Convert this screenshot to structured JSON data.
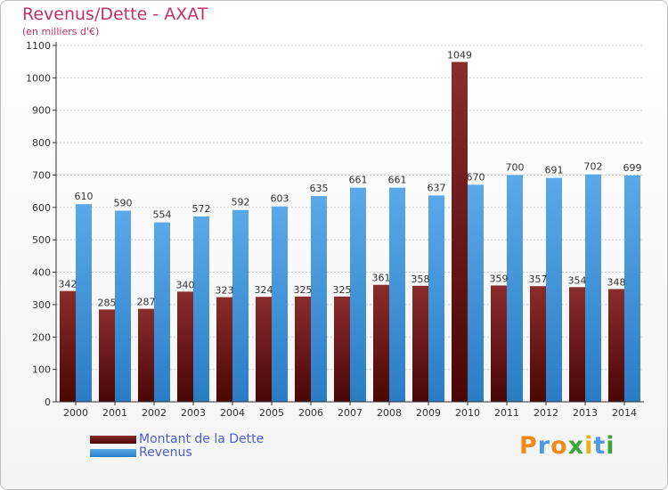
{
  "title": "Revenus/Dette - AXAT",
  "subtitle": "(en milliers d'€)",
  "colors": {
    "debt": "#7a1a1a",
    "revenue": "#4d9fe3",
    "title": "#c0306c",
    "legend_text": "#4a5fd0",
    "grid": "#cfcfcf"
  },
  "chart_data": {
    "type": "bar",
    "categories": [
      "2000",
      "2001",
      "2002",
      "2003",
      "2004",
      "2005",
      "2006",
      "2007",
      "2008",
      "2009",
      "2010",
      "2011",
      "2012",
      "2013",
      "2014"
    ],
    "series": [
      {
        "name": "Montant de la Dette",
        "values": [
          342,
          285,
          287,
          340,
          323,
          324,
          325,
          325,
          361,
          358,
          1049,
          359,
          357,
          354,
          348
        ]
      },
      {
        "name": "Revenus",
        "values": [
          610,
          590,
          554,
          572,
          592,
          603,
          635,
          661,
          661,
          637,
          670,
          700,
          691,
          702,
          699
        ]
      }
    ],
    "yticks": [
      0,
      100,
      200,
      300,
      400,
      500,
      600,
      700,
      800,
      900,
      1000,
      1100
    ],
    "ylim": [
      0,
      1100
    ],
    "grid": true,
    "legend_position": "bottom-left"
  },
  "legend": {
    "debt_label": "Montant de la Dette",
    "revenue_label": "Revenus"
  },
  "logo": {
    "letters": [
      "P",
      "r",
      "o",
      "x",
      "i",
      "t",
      "i"
    ],
    "colors": [
      "#f08a1d",
      "#4a9be0",
      "#f08a1d",
      "#3aa53a",
      "#e6b21c",
      "#4a9be0",
      "#3aa53a"
    ]
  }
}
